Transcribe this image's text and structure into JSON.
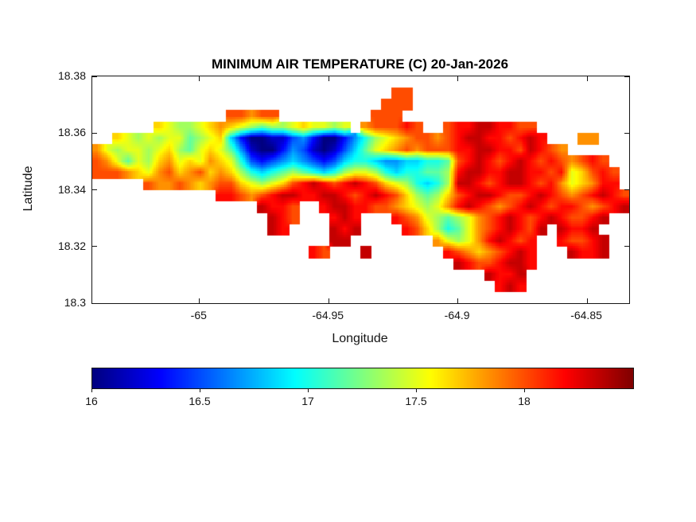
{
  "figure": {
    "background": "#ffffff",
    "colors": {
      "axis": "#151515",
      "title": "#000000"
    }
  },
  "chart_data": {
    "type": "heatmap",
    "title": "MINIMUM AIR TEMPERATURE (C) 20-Jan-2026",
    "xlabel": "Longitude",
    "ylabel": "Latitude",
    "value_units": "C",
    "x_range": [
      -65.0415,
      -64.8337
    ],
    "y_range": [
      18.3,
      18.38
    ],
    "x_ticks": [
      -65,
      -64.95,
      -64.9,
      -64.85
    ],
    "x_tick_labels": [
      "-65",
      "-64.95",
      "-64.9",
      "-64.85"
    ],
    "y_ticks": [
      18.3,
      18.32,
      18.34,
      18.36,
      18.38
    ],
    "y_tick_labels": [
      "18.3",
      "18.32",
      "18.34",
      "18.36",
      "18.38"
    ],
    "colormap": "jet",
    "value_range": [
      16,
      18.5
    ],
    "colorbar_orientation": "horizontal",
    "colorbar_ticks": [
      16,
      16.5,
      17,
      17.5,
      18
    ],
    "colorbar_tick_labels": [
      "16",
      "16.5",
      "17",
      "17.5",
      "18"
    ],
    "grid": {
      "ncols": 52,
      "nrows": 20,
      "encoding": "each char is one cell, row 0 = north (lat 18.38); '.' = no data (sea); hex digit n ('0'-'f') = temperature 16 + n/6 degrees C",
      "rows": [
        "....................................................",
        ".............................cc.....................",
        "............................ccc.....................",
        ".............ccbcc.........ccc......................",
        "......a9889aba987889a9989.bcccdc..cddeeddcc.........",
        "..a989899789a5200113420024689abccbcdeeddcded...bb...",
        "b989989a879a9741002431013579abcbcccddeeddcedcb......",
        "cb9798ab9a9ba9632345432356654455667cdedcdedcdcbcdc..",
        "cccba9bcabcaba865678765689986566778deeddeeddcd9acdc.",
        ".....cbbcbabcca989acdedcdedca986568eedcdeedcdb9abdd.",
        "............ddcbcdeeddeedcdedca878acdeedccdedcbcdedc",
        "................eddc..deeddccba989bdedcbcdedcddcbcde",
        ".................edc...ded...dcb98789bcdedcdedccde..",
        ".................ed....ede....dca8679bcdedce.edde...",
        ".......................ee........b989bdedcd..dccde..",
        ".....................dc...e.......dcbabcded...edde..",
        "...................................edccdeed.........",
        "......................................edde..........",
        ".......................................ded..........",
        "...................................................."
      ]
    }
  }
}
